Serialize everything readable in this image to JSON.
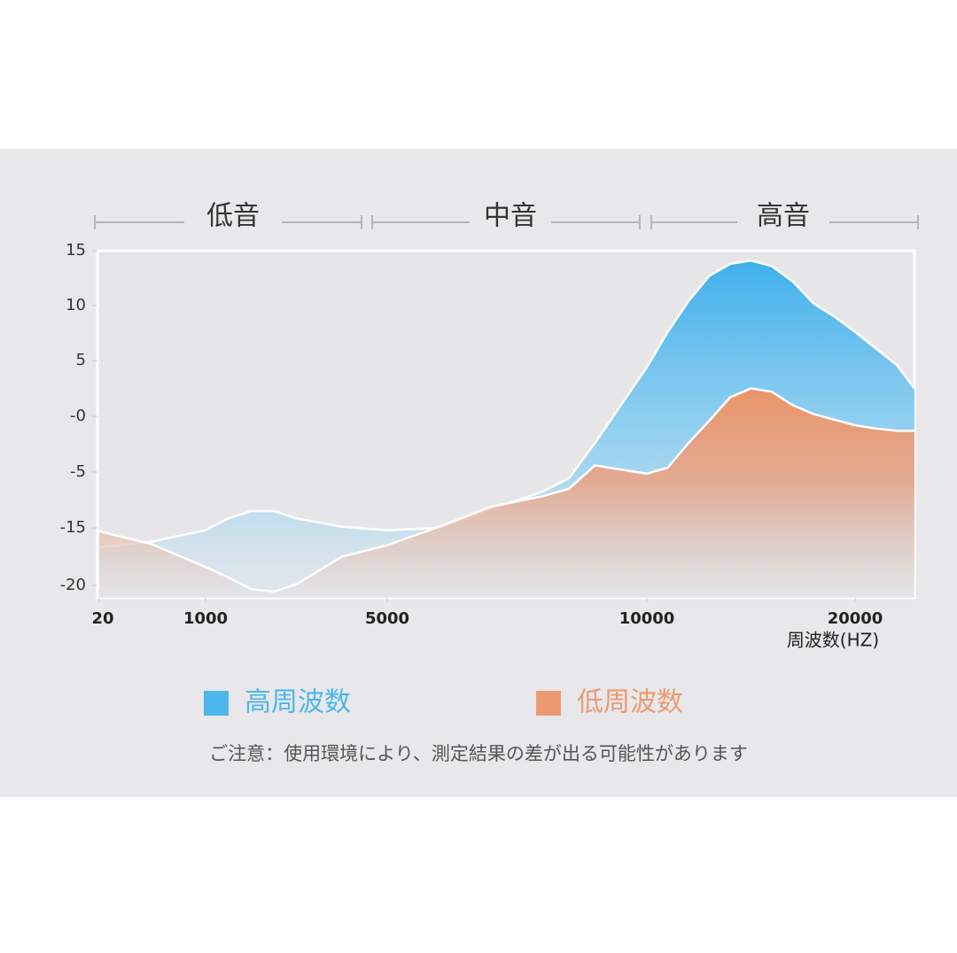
{
  "chart_data": {
    "type": "area",
    "annotations": [
      "低音",
      "中音",
      "高音"
    ],
    "x_label": "周波数(HZ)",
    "caption": "ご注意：使用環境により、測定結果の差が出る可能性があります",
    "x": [
      20,
      500,
      1000,
      1500,
      2000,
      2500,
      3000,
      4000,
      5000,
      6000,
      7000,
      8000,
      8500,
      9000,
      10000,
      11000,
      12000,
      13000,
      14000,
      15000,
      16000,
      17000,
      18000,
      19000,
      20000,
      21000,
      22000,
      22850
    ],
    "series": [
      {
        "name": "高周波数",
        "color": "#4db6ec",
        "values": [
          -16.7,
          -16.2,
          -15.2,
          -13.3,
          -12.0,
          -12.0,
          -13.3,
          -14.8,
          -15.2,
          -15.0,
          -11.7,
          -8.5,
          -6.1,
          -2.4,
          4.4,
          7.6,
          10.4,
          12.7,
          13.8,
          14.1,
          13.6,
          12.2,
          10.2,
          9.0,
          7.6,
          6.1,
          4.6,
          2.5
        ]
      },
      {
        "name": "低周波数",
        "color": "#ec9a72",
        "values": [
          -15.3,
          -16.4,
          -18.4,
          -19.3,
          -20.3,
          -20.5,
          -19.9,
          -17.5,
          -16.5,
          -14.8,
          -11.2,
          -9.3,
          -8.0,
          -4.4,
          -5.3,
          -4.6,
          -2.4,
          -0.4,
          1.7,
          2.5,
          2.2,
          1.0,
          0.2,
          -0.3,
          -0.8,
          -1.1,
          -1.3,
          -1.3
        ]
      }
    ],
    "xlim": [
      20,
      22850
    ],
    "xticks": [
      20,
      1000,
      5000,
      10000,
      20000
    ],
    "ylim": [
      -21,
      15
    ],
    "yticks": [
      15,
      10,
      5,
      {
        "value": 0,
        "label": "-0"
      },
      -5,
      -15,
      -20
    ]
  }
}
